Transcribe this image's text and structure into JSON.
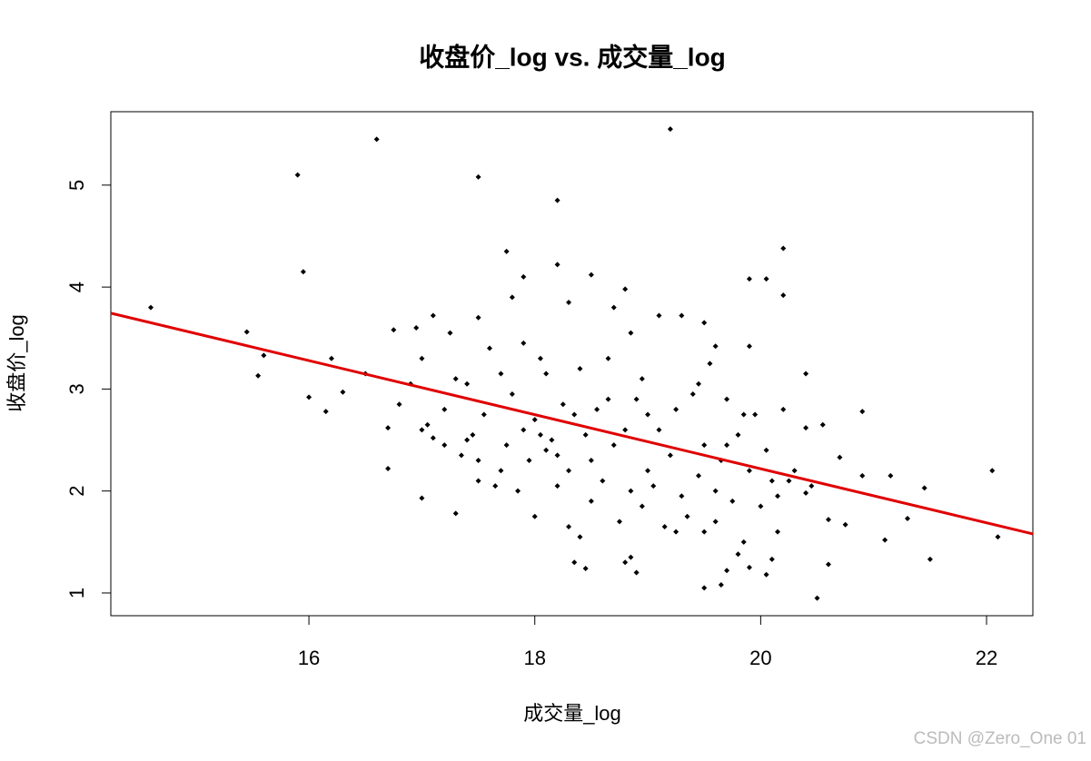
{
  "chart_data": {
    "type": "scatter",
    "title": "收盘价_log vs. 成交量_log",
    "x_label": "成交量_log",
    "y_label": "收盘价_log",
    "watermark": "CSDN @Zero_One 01",
    "xlim": [
      14.246,
      22.41
    ],
    "xticks": [
      16,
      18,
      20,
      22
    ],
    "ylim": [
      0.777,
      5.72
    ],
    "yticks": [
      1,
      2,
      3,
      4,
      5
    ],
    "series": [
      {
        "color": "#000000",
        "x": [
          14.6,
          15.9,
          15.95,
          16.6,
          17.5,
          19.2,
          18.2,
          17.75,
          18.2,
          20.2,
          20.05,
          19.9,
          20.2,
          15.45,
          15.6,
          15.55,
          16,
          16.15,
          16.2,
          16.3,
          16.5,
          16.7,
          16.7,
          16.75,
          16.95,
          17.1,
          17,
          17,
          17.3,
          17.5,
          17.8,
          17.9,
          18.3,
          18.5,
          18.8,
          19.1,
          19.3,
          19.5,
          19.6,
          19.9,
          20.4,
          20.9,
          22.05,
          22.1,
          21.5,
          21.45,
          21.3,
          21.15,
          21.1,
          20.9,
          20.75,
          20.7,
          20.6,
          20.5,
          20.55,
          20.4,
          20.6,
          19.5,
          19.65,
          19.7,
          19.8,
          19.9,
          20.05,
          20.1,
          20.15,
          18.8,
          18.85,
          18.9,
          18.35,
          18.45,
          18.4,
          17.1,
          17.2,
          17.2,
          17.25,
          17.3,
          17.4,
          17.35,
          17.4,
          17.45,
          17.5,
          17.5,
          17.55,
          17.6,
          17.7,
          17.7,
          17.75,
          17.8,
          17.85,
          17.9,
          17.9,
          17.95,
          18.0,
          18.0,
          18.05,
          18.1,
          18.1,
          18.15,
          18.2,
          18.25,
          18.3,
          18.3,
          18.35,
          18.4,
          18.45,
          18.5,
          18.5,
          18.55,
          18.6,
          18.65,
          18.7,
          18.75,
          18.8,
          18.85,
          18.9,
          18.95,
          19.0,
          19.0,
          19.05,
          19.1,
          19.15,
          19.2,
          19.25,
          19.3,
          19.35,
          19.4,
          19.45,
          19.5,
          19.5,
          19.55,
          19.6,
          19.6,
          19.65,
          19.7,
          19.75,
          19.8,
          19.85,
          19.9,
          19.95,
          20.0,
          20.05,
          20.1,
          20.15,
          20.2,
          20.3,
          20.4,
          20.45,
          16.8,
          16.9,
          17.0,
          17.05,
          18.7,
          18.85,
          19.45,
          19.85,
          18.65,
          18.05,
          17.65,
          19.25,
          18.95,
          18.2,
          19.7,
          20.25
        ],
        "y": [
          3.8,
          5.1,
          4.15,
          5.45,
          5.08,
          5.55,
          4.85,
          4.35,
          4.22,
          4.38,
          4.08,
          4.08,
          3.92,
          3.56,
          3.33,
          3.13,
          2.92,
          2.78,
          3.3,
          2.97,
          3.15,
          2.22,
          2.62,
          3.58,
          3.6,
          3.72,
          2.6,
          1.93,
          1.78,
          3.7,
          3.9,
          4.1,
          3.85,
          4.12,
          3.98,
          3.72,
          3.72,
          3.65,
          3.42,
          3.42,
          3.15,
          2.78,
          2.2,
          1.55,
          1.33,
          2.03,
          1.73,
          2.15,
          1.52,
          2.15,
          1.67,
          2.33,
          1.28,
          0.95,
          2.65,
          2.62,
          1.72,
          1.05,
          1.08,
          1.22,
          1.38,
          1.25,
          1.18,
          1.33,
          1.6,
          1.3,
          1.35,
          1.2,
          1.3,
          1.24,
          1.55,
          2.52,
          2.45,
          2.8,
          3.55,
          3.1,
          3.05,
          2.35,
          2.5,
          2.55,
          2.3,
          2.1,
          2.75,
          3.4,
          3.15,
          2.2,
          2.45,
          2.95,
          2.0,
          2.6,
          3.45,
          2.3,
          2.7,
          1.75,
          3.3,
          2.4,
          3.15,
          2.5,
          2.05,
          2.85,
          2.2,
          1.65,
          2.75,
          3.2,
          2.55,
          2.3,
          1.9,
          2.8,
          2.1,
          3.3,
          2.45,
          1.7,
          2.6,
          2.0,
          2.9,
          1.85,
          2.75,
          2.2,
          2.05,
          2.6,
          1.65,
          2.35,
          2.8,
          1.95,
          1.75,
          2.95,
          2.15,
          1.6,
          2.45,
          3.25,
          2.0,
          1.7,
          2.3,
          2.9,
          1.9,
          2.55,
          1.5,
          2.2,
          2.75,
          1.85,
          2.4,
          2.1,
          1.95,
          2.8,
          2.2,
          1.98,
          2.05,
          2.85,
          3.05,
          3.3,
          2.65,
          3.8,
          3.55,
          3.05,
          2.75,
          2.9,
          2.55,
          2.05,
          1.6,
          3.1,
          2.35,
          2.45,
          2.1
        ]
      }
    ],
    "regression": {
      "color": "#e00000",
      "x": [
        14.246,
        22.41
      ],
      "y": [
        3.744,
        1.579
      ]
    }
  }
}
